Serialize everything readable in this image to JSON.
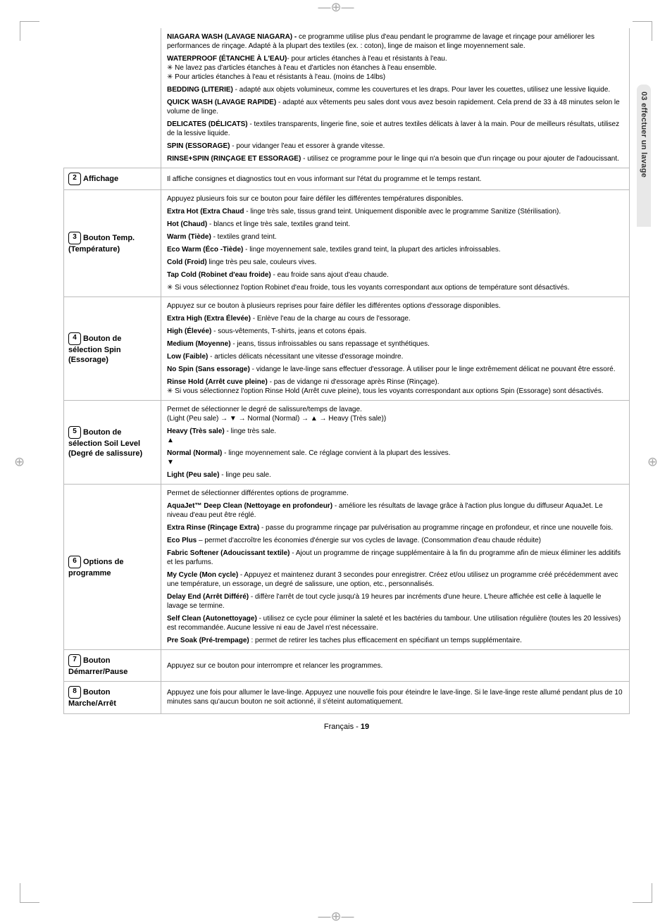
{
  "sideTab": "03 effectuer un lavage",
  "footer": {
    "lang": "Français - ",
    "page": "19"
  },
  "rows": [
    {
      "num": "",
      "label": "",
      "paras": [
        {
          "bold": "NIAGARA WASH (LAVAGE NIAGARA) - ",
          "text": "ce programme utilise plus d'eau pendant le programme de lavage et rinçage pour améliorer les performances de rinçage. Adapté à la plupart des textiles (ex. : coton), linge de maison et linge moyennement sale."
        },
        {
          "bold": "WATERPROOF (ÉTANCHE À L'EAU)",
          "text": "- pour articles étanches à l'eau et résistants à l'eau.\n✳ Ne lavez pas d'articles étanches à l'eau et d'articles non étanches à l'eau ensemble.\n✳ Pour articles étanches à l'eau et résistants à l'eau. (moins de 14lbs)"
        },
        {
          "bold": "BEDDING (LITERIE) ",
          "text": "- adapté aux objets volumineux, comme les couvertures et les draps. Pour laver les couettes, utilisez une lessive liquide."
        },
        {
          "bold": "QUICK WASH (LAVAGE RAPIDE) ",
          "text": "- adapté aux vêtements peu sales dont vous avez besoin rapidement. Cela prend de 33 à 48 minutes selon le volume de linge."
        },
        {
          "bold": "DELICATES (DÉLICATS) ",
          "text": " - textiles transparents, lingerie fine, soie et autres textiles délicats à laver à la main. Pour de meilleurs résultats, utilisez de la lessive liquide."
        },
        {
          "bold": "SPIN (ESSORAGE) ",
          "text": "- pour vidanger l'eau et essorer à grande vitesse."
        },
        {
          "bold": "RINSE+SPIN (RINÇAGE ET ESSORAGE) ",
          "text": "- utilisez ce programme pour le linge qui n'a besoin que d'un rinçage ou pour ajouter de l'adoucissant."
        }
      ]
    },
    {
      "num": "2",
      "label": "Affichage",
      "paras": [
        {
          "bold": "",
          "text": "Il affiche consignes et diagnostics tout en vous informant sur l'état du programme et le temps restant."
        }
      ]
    },
    {
      "num": "3",
      "label": "Bouton Temp. (Température)",
      "paras": [
        {
          "bold": "",
          "text": "Appuyez plusieurs fois sur ce bouton pour faire défiler les différentes températures disponibles."
        },
        {
          "bold": "Extra Hot (Extra Chaud ",
          "text": " - linge très sale, tissus grand teint. Uniquement disponible avec le programme Sanitize (Stérilisation)."
        },
        {
          "bold": "Hot (Chaud) ",
          "text": "- blancs et linge très sale, textiles grand teint."
        },
        {
          "bold": "Warm (Tiède) ",
          "text": "- textiles grand teint."
        },
        {
          "bold": "Eco Warm (Éco -Tiède) ",
          "text": " - linge moyennement sale, textiles grand teint, la plupart des articles infroissables."
        },
        {
          "bold": "Cold (Froid) ",
          "text": " linge très peu sale, couleurs vives."
        },
        {
          "bold": "Tap Cold (Robinet d'eau froide) ",
          "text": "- eau froide sans ajout d'eau chaude."
        },
        {
          "bold": "",
          "text": "✳ Si vous sélectionnez l'option Robinet d'eau froide, tous les voyants correspondant aux options de température sont désactivés."
        }
      ]
    },
    {
      "num": "4",
      "label": "Bouton de sélection Spin (Essorage)",
      "paras": [
        {
          "bold": "",
          "text": "Appuyez sur ce bouton à plusieurs reprises pour faire défiler les différentes options d'essorage disponibles."
        },
        {
          "bold": "Extra High (Extra Élevée) ",
          "text": " - Enlève l'eau de la charge au cours de l'essorage."
        },
        {
          "bold": "High (Élevée) ",
          "text": "- sous-vêtements, T-shirts, jeans et cotons épais."
        },
        {
          "bold": "Medium (Moyenne) ",
          "text": "-  jeans, tissus infroissables ou sans repassage et synthétiques."
        },
        {
          "bold": "Low (Faible) ",
          "text": "- articles délicats nécessitant une vitesse d'essorage moindre."
        },
        {
          "bold": "No Spin (Sans essorage) ",
          "text": "- vidange le lave-linge sans effectuer d'essorage. À utiliser pour le linge extrêmement délicat ne pouvant être essoré."
        },
        {
          "bold": "Rinse Hold (Arrêt cuve pleine) ",
          "text": "- pas de vidange ni d'essorage après Rinse (Rinçage).\n✳ Si vous sélectionnez l'option Rinse Hold (Arrêt cuve pleine), tous les voyants correspondant aux options Spin (Essorage) sont désactivés."
        }
      ]
    },
    {
      "num": "5",
      "label": "Bouton de sélection Soil Level (Degré de salissure)",
      "paras": [
        {
          "bold": "",
          "text": "Permet de sélectionner le degré de salissure/temps de lavage.\n(Light (Peu sale) → ▼ → Normal (Normal) → ▲ → Heavy (Très sale))"
        },
        {
          "bold": "Heavy (Très sale) ",
          "text": "- linge très sale.\n▲"
        },
        {
          "bold": "Normal (Normal) ",
          "text": "- linge moyennement sale.  Ce réglage convient à la plupart des lessives.\n▼"
        },
        {
          "bold": "Light (Peu sale) ",
          "text": "- linge peu sale."
        }
      ]
    },
    {
      "num": "6",
      "label": "Options de programme",
      "paras": [
        {
          "bold": "",
          "text": "Permet de sélectionner différentes options de programme."
        },
        {
          "bold": "AquaJet™ Deep Clean (Nettoyage en profondeur) ",
          "text": "- améliore les résultats de lavage grâce à l'action plus longue du diffuseur AquaJet. Le niveau d'eau peut être réglé."
        },
        {
          "bold": "Extra Rinse (Rinçage Extra) ",
          "text": "- passe du programme rinçage par pulvérisation au programme rinçage en profondeur, et rince une nouvelle fois."
        },
        {
          "bold": "Eco Plus ",
          "text": "– permet d'accroître les économies d'énergie sur vos cycles de lavage. (Consommation d'eau chaude réduite)"
        },
        {
          "bold": "Fabric Softener (Adoucissant textile) ",
          "text": "- Ajout un programme de rinçage supplémentaire à la fin du programme afin de mieux éliminer les additifs et les parfums."
        },
        {
          "bold": "My Cycle (Mon cycle) ",
          "text": "- Appuyez et maintenez durant 3 secondes pour enregistrer. Créez et/ou utilisez un programme créé précédemment avec une température, un essorage, un degré de salissure, une option, etc., personnalisés."
        },
        {
          "bold": "Delay End (Arrêt Différé) ",
          "text": "- diffère l'arrêt de tout cycle jusqu'à 19 heures par incréments d'une heure. L'heure affichée est celle à laquelle le lavage se termine."
        },
        {
          "bold": "Self Clean (Autonettoyage) ",
          "text": "- utilisez ce cycle pour éliminer la saleté et les bactéries du tambour. Une utilisation régulière (toutes les 20 lessives) est recommandée. Aucune lessive ni eau de Javel n'est nécessaire."
        },
        {
          "bold": "Pre Soak (Pré-trempage) ",
          "text": ": permet de retirer les taches plus efficacement en spécifiant un temps supplémentaire."
        }
      ]
    },
    {
      "num": "7",
      "label": "Bouton Démarrer/Pause",
      "paras": [
        {
          "bold": "",
          "text": "Appuyez sur ce bouton pour interrompre et relancer les programmes."
        }
      ]
    },
    {
      "num": "8",
      "label": "Bouton Marche/Arrêt",
      "paras": [
        {
          "bold": "",
          "text": "Appuyez une fois pour allumer le lave-linge. Appuyez une nouvelle fois pour éteindre le lave-linge. Si le lave-linge reste allumé pendant plus de 10 minutes sans qu'aucun bouton ne soit actionné, il s'éteint automatiquement."
        }
      ]
    }
  ]
}
